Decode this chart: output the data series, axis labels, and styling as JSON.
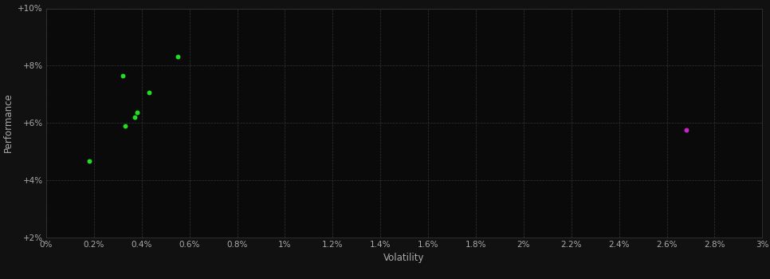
{
  "background_color": "#111111",
  "plot_bg_color": "#0a0a0a",
  "grid_color": "#3a3a3a",
  "text_color": "#aaaaaa",
  "xlabel": "Volatility",
  "ylabel": "Performance",
  "xlim": [
    0.0,
    0.03
  ],
  "ylim": [
    0.02,
    0.1
  ],
  "green_points": [
    [
      0.0018,
      0.0465
    ],
    [
      0.0033,
      0.059
    ],
    [
      0.0037,
      0.062
    ],
    [
      0.0038,
      0.0635
    ],
    [
      0.0043,
      0.0705
    ],
    [
      0.0032,
      0.0765
    ],
    [
      0.0055,
      0.083
    ]
  ],
  "magenta_points": [
    [
      0.0268,
      0.0575
    ]
  ],
  "point_size": 18,
  "green_color": "#22dd22",
  "magenta_color": "#cc22cc",
  "xticks": [
    0.0,
    0.002,
    0.004,
    0.006,
    0.008,
    0.01,
    0.012,
    0.014,
    0.016,
    0.018,
    0.02,
    0.022,
    0.024,
    0.026,
    0.028,
    0.03
  ],
  "xtick_labels": [
    "0%",
    "0.2%",
    "0.4%",
    "0.6%",
    "0.8%",
    "1%",
    "1.2%",
    "1.4%",
    "1.6%",
    "1.8%",
    "2%",
    "2.2%",
    "2.4%",
    "2.6%",
    "2.8%",
    "3%"
  ],
  "yticks": [
    0.02,
    0.04,
    0.06,
    0.08,
    0.1
  ],
  "ytick_labels": [
    "+2%",
    "+4%",
    "+6%",
    "+8%",
    "+10%"
  ]
}
